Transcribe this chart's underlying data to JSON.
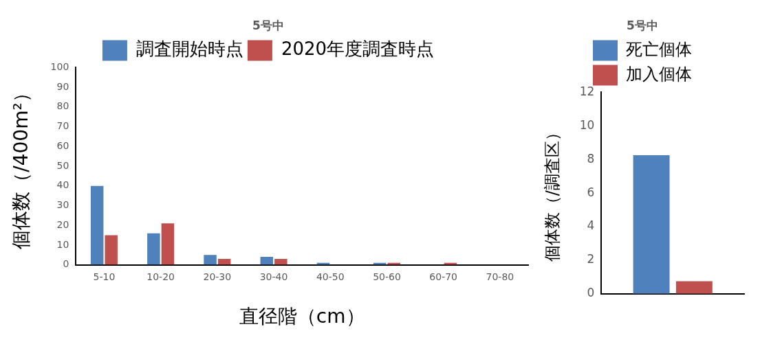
{
  "chart_data": [
    {
      "type": "bar",
      "title": "5号中",
      "xlabel": "直径階（cm）",
      "ylabel": "個体数（/400m²）",
      "categories": [
        "5-10",
        "10-20",
        "20-30",
        "30-40",
        "40-50",
        "50-60",
        "60-70",
        "70-80"
      ],
      "series": [
        {
          "name": "調査開始時点",
          "color": "#4f81bd",
          "values": [
            40,
            16,
            5,
            4,
            1,
            1,
            0,
            0
          ]
        },
        {
          "name": "2020年度調査時点",
          "color": "#c0504d",
          "values": [
            15,
            21,
            3,
            3,
            0,
            1,
            1,
            0
          ]
        }
      ],
      "ylim": [
        0,
        100
      ],
      "yticks": [
        0,
        10,
        20,
        30,
        40,
        50,
        60,
        70,
        80,
        90,
        100
      ],
      "grid": false,
      "legend": "top"
    },
    {
      "type": "bar",
      "title": "5号中",
      "ylabel": "個体数（/調査区）",
      "categories": [
        null
      ],
      "series": [
        {
          "name": "死亡個体",
          "color": "#4f81bd",
          "values": [
            8.25
          ]
        },
        {
          "name": "加入個体",
          "color": "#c0504d",
          "values": [
            0.75
          ]
        }
      ],
      "ylim": [
        0,
        12
      ],
      "yticks": [
        0,
        2,
        4,
        6,
        8,
        10,
        12
      ],
      "grid": false,
      "legend": "top",
      "tick_labels": "y"
    }
  ]
}
